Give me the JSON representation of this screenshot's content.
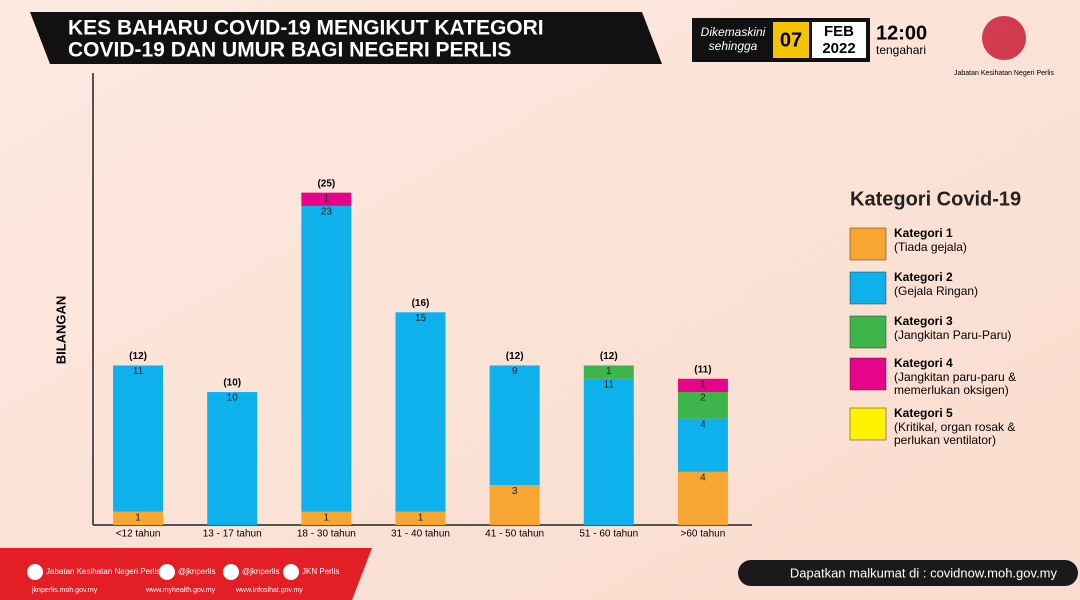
{
  "chart_data": {
    "type": "stacked_bar",
    "title": [
      "KES BAHARU COVID-19 MENGIKUT KATEGORI",
      "COVID-19 DAN UMUR BAGI NEGERI PERLIS"
    ],
    "updated": {
      "label": [
        "Dikemaskini",
        "sehingga"
      ],
      "day": "07",
      "month": "FEB",
      "year": "2022",
      "time": "12:00",
      "period": "tengahari"
    },
    "agency": "Jabatan Kesihatan Negeri Perlis",
    "ylabel": "BILANGAN",
    "categories": [
      "<12 tahun",
      "13 - 17 tahun",
      "18 - 30 tahun",
      "31 - 40 tahun",
      "41 - 50 tahun",
      "51 - 60 tahun",
      ">60 tahun"
    ],
    "totals": [
      12,
      10,
      25,
      16,
      12,
      12,
      11
    ],
    "total_labels": [
      "(12)",
      "(10)",
      "(25)",
      "(16)",
      "(12)",
      "(12)",
      "(11)"
    ],
    "legend_title": "Kategori Covid-19",
    "series": [
      {
        "name": "Kategori 1",
        "description": [
          "(Tiada gejala)"
        ],
        "color": "#f7a731",
        "values": [
          1,
          null,
          1,
          1,
          3,
          null,
          4
        ]
      },
      {
        "name": "Kategori 2",
        "description": [
          "(Gejala Ringan)"
        ],
        "color": "#0fb1ec",
        "values": [
          11,
          10,
          23,
          15,
          9,
          11,
          4
        ]
      },
      {
        "name": "Kategori 3",
        "description": [
          "(Jangkitan Paru-Paru)"
        ],
        "color": "#3db54a",
        "values": [
          null,
          null,
          null,
          null,
          null,
          1,
          2
        ]
      },
      {
        "name": "Kategori 4",
        "description": [
          "(Jangkitan paru-paru &",
          "memerlukan oksigen)"
        ],
        "color": "#e6058a",
        "values": [
          null,
          null,
          1,
          null,
          null,
          null,
          1
        ]
      },
      {
        "name": "Kategori 5",
        "description": [
          "(Kritikal, organ rosak &",
          "perlukan ventilator)"
        ],
        "color": "#fff200",
        "values": [
          null,
          null,
          null,
          null,
          null,
          null,
          null
        ]
      }
    ],
    "ylim": [
      0,
      34
    ],
    "footer": {
      "socials": [
        "Jabatan Kesihatan Negeri Perlis",
        "@jknperlis",
        "@jknperlis",
        "JKN Perlis"
      ],
      "sites": [
        "jknperlis.moh.gov.my",
        "www.myhealth.gov.my",
        "www.infosihat.gov.my"
      ],
      "info": "Dapatkan malkumat di : covidnow.moh.gov.my"
    }
  }
}
